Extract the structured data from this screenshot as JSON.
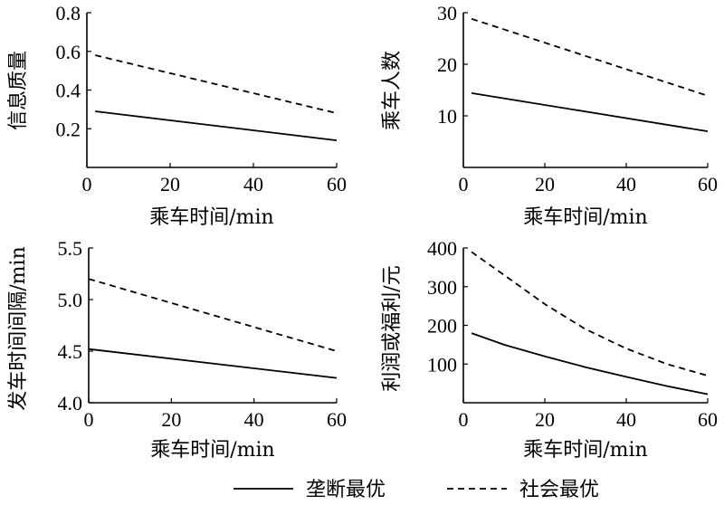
{
  "legend": {
    "position": "bottom-center",
    "entries": [
      {
        "label": "垄断最优",
        "style": "solid"
      },
      {
        "label": "社会最优",
        "style": "dashed"
      }
    ]
  },
  "chart_data": [
    {
      "type": "line",
      "xlabel": "乘车时间/min",
      "ylabel": "信息质量",
      "xlim": [
        0,
        60
      ],
      "ylim": [
        0,
        0.8
      ],
      "xticks": [
        0,
        20,
        40,
        60
      ],
      "yticks": [
        0.2,
        0.4,
        0.6,
        0.8
      ],
      "xtick_labels": [
        "0",
        "20",
        "40",
        "60"
      ],
      "ytick_labels": [
        "0.2",
        "0.4",
        "0.6",
        "0.8"
      ],
      "series": [
        {
          "name": "垄断最优",
          "style": "solid",
          "x": [
            2,
            60
          ],
          "y": [
            0.29,
            0.14
          ]
        },
        {
          "name": "社会最优",
          "style": "dashed",
          "x": [
            2,
            60
          ],
          "y": [
            0.58,
            0.28
          ]
        }
      ]
    },
    {
      "type": "line",
      "xlabel": "乘车时间/min",
      "ylabel": "乘车人数",
      "xlim": [
        0,
        60
      ],
      "ylim": [
        0,
        30
      ],
      "xticks": [
        0,
        20,
        40,
        60
      ],
      "yticks": [
        10,
        20,
        30
      ],
      "xtick_labels": [
        "0",
        "20",
        "40",
        "60"
      ],
      "ytick_labels": [
        "10",
        "20",
        "30"
      ],
      "series": [
        {
          "name": "垄断最优",
          "style": "solid",
          "x": [
            2,
            60
          ],
          "y": [
            14.4,
            7.0
          ]
        },
        {
          "name": "社会最优",
          "style": "dashed",
          "x": [
            2,
            60
          ],
          "y": [
            28.8,
            13.9
          ]
        }
      ]
    },
    {
      "type": "line",
      "xlabel": "乘车时间/min",
      "ylabel": "发车时间间隔/min",
      "xlim": [
        0,
        60
      ],
      "ylim": [
        4.0,
        5.5
      ],
      "xticks": [
        0,
        20,
        40,
        60
      ],
      "yticks": [
        4.0,
        4.5,
        5.0,
        5.5
      ],
      "xtick_labels": [
        "0",
        "20",
        "40",
        "60"
      ],
      "ytick_labels": [
        "4.0",
        "4.5",
        "5.0",
        "5.5"
      ],
      "series": [
        {
          "name": "垄断最优",
          "style": "solid",
          "x": [
            0,
            60
          ],
          "y": [
            4.52,
            4.24
          ]
        },
        {
          "name": "社会最优",
          "style": "dashed",
          "x": [
            0,
            60
          ],
          "y": [
            5.2,
            4.5
          ]
        }
      ]
    },
    {
      "type": "line",
      "xlabel": "乘车时间/min",
      "ylabel": "利润或福利/元",
      "xlim": [
        0,
        60
      ],
      "ylim": [
        0,
        400
      ],
      "xticks": [
        0,
        20,
        40,
        60
      ],
      "yticks": [
        100,
        200,
        300,
        400
      ],
      "xtick_labels": [
        "0",
        "20",
        "40",
        "60"
      ],
      "ytick_labels": [
        "100",
        "200",
        "300",
        "400"
      ],
      "series": [
        {
          "name": "垄断最优",
          "style": "solid",
          "x": [
            2,
            10,
            20,
            30,
            40,
            50,
            60
          ],
          "y": [
            180,
            150,
            120,
            92,
            67,
            43,
            22
          ]
        },
        {
          "name": "社会最优",
          "style": "dashed",
          "x": [
            2,
            10,
            20,
            30,
            40,
            50,
            60
          ],
          "y": [
            390,
            330,
            255,
            190,
            140,
            100,
            70
          ]
        }
      ]
    }
  ]
}
